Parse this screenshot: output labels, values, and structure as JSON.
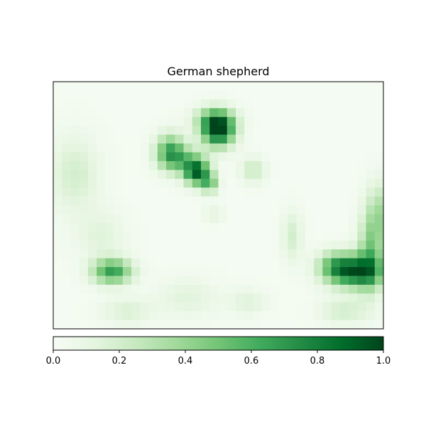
{
  "chart_data": {
    "type": "heatmap",
    "title": "German shepherd",
    "xlabel": "",
    "ylabel": "",
    "axes_ticks_visible": false,
    "grid": false,
    "colormap": "Greens",
    "colormap_stops": [
      "#f7fcf5",
      "#e5f5e0",
      "#c7e9c0",
      "#a1d99b",
      "#74c476",
      "#41ab5d",
      "#238b45",
      "#006d2c",
      "#00441b"
    ],
    "grid_size": {
      "rows": 28,
      "cols": 38
    },
    "hotspots": [
      {
        "row": 5.0,
        "col": 18.5,
        "sr": 1.3,
        "sc": 1.3,
        "value": 0.95
      },
      {
        "row": 3.8,
        "col": 18.0,
        "sr": 1.0,
        "sc": 1.6,
        "value": 0.35
      },
      {
        "row": 7.5,
        "col": 13.0,
        "sr": 1.4,
        "sc": 1.2,
        "value": 0.62
      },
      {
        "row": 9.8,
        "col": 16.0,
        "sr": 1.0,
        "sc": 1.0,
        "value": 0.82
      },
      {
        "row": 11.0,
        "col": 17.5,
        "sr": 0.8,
        "sc": 0.7,
        "value": 0.45
      },
      {
        "row": 8.4,
        "col": 15.0,
        "sr": 1.0,
        "sc": 1.5,
        "value": 0.32
      },
      {
        "row": 9.5,
        "col": 22.5,
        "sr": 1.0,
        "sc": 1.0,
        "value": 0.22
      },
      {
        "row": 10.0,
        "col": 2.0,
        "sr": 3.0,
        "sc": 2.0,
        "value": 0.18
      },
      {
        "row": 21.0,
        "col": 6.3,
        "sr": 1.0,
        "sc": 1.6,
        "value": 0.65
      },
      {
        "row": 21.0,
        "col": 34.5,
        "sr": 1.3,
        "sc": 2.0,
        "value": 0.78
      },
      {
        "row": 20.5,
        "col": 32.0,
        "sr": 1.2,
        "sc": 1.5,
        "value": 0.45
      },
      {
        "row": 19.0,
        "col": 36.0,
        "sr": 3.0,
        "sc": 1.0,
        "value": 0.4
      },
      {
        "row": 14.5,
        "col": 37.0,
        "sr": 2.5,
        "sc": 1.0,
        "value": 0.3
      },
      {
        "row": 17.0,
        "col": 27.0,
        "sr": 2.0,
        "sc": 0.8,
        "value": 0.18
      },
      {
        "row": 25.5,
        "col": 8.0,
        "sr": 1.0,
        "sc": 2.0,
        "value": 0.15
      },
      {
        "row": 24.0,
        "col": 15.0,
        "sr": 1.5,
        "sc": 2.5,
        "value": 0.12
      },
      {
        "row": 25.5,
        "col": 33.0,
        "sr": 1.0,
        "sc": 2.0,
        "value": 0.18
      },
      {
        "row": 24.5,
        "col": 22.0,
        "sr": 1.0,
        "sc": 1.5,
        "value": 0.13
      },
      {
        "row": 14.5,
        "col": 18.0,
        "sr": 0.6,
        "sc": 0.8,
        "value": 0.12
      },
      {
        "row": 17.0,
        "col": 5.0,
        "sr": 2.0,
        "sc": 2.0,
        "value": 0.12
      }
    ],
    "background_value": 0.02,
    "colorbar": {
      "orientation": "horizontal",
      "range": [
        0.0,
        1.0
      ],
      "ticks": [
        0.0,
        0.2,
        0.4,
        0.6,
        0.8,
        1.0
      ],
      "tick_labels": [
        "0.0",
        "0.2",
        "0.4",
        "0.6",
        "0.8",
        "1.0"
      ]
    }
  }
}
